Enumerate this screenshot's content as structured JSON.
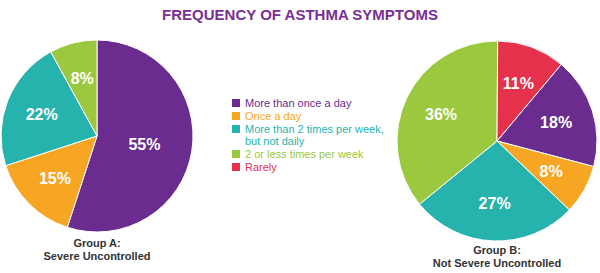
{
  "chart_data": {
    "type": "pie",
    "title": "FREQUENCY OF ASTHMA SYMPTOMS",
    "categories": [
      "More than once a day",
      "Once a day",
      "More than 2 times per week, but not daily",
      "2 or less times per week",
      "Rarely"
    ],
    "colors": [
      "#6a2c8f",
      "#f6a623",
      "#27b3ad",
      "#9bc83e",
      "#e5314b"
    ],
    "data_labels": true,
    "legend": "center",
    "series": [
      {
        "name": "Group A: Severe Uncontrolled",
        "values": [
          55,
          15,
          22,
          8,
          0
        ],
        "value_labels": [
          "55%",
          "15%",
          "22%",
          "8%",
          null
        ]
      },
      {
        "name": "Group B: Not Severe Uncontrolled",
        "values": [
          18,
          8,
          27,
          36,
          11
        ],
        "value_labels": [
          "18%",
          "8%",
          "27%",
          "36%",
          "11%"
        ]
      }
    ]
  }
}
